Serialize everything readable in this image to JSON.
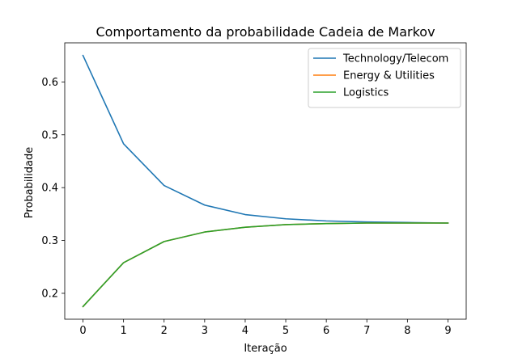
{
  "chart_data": {
    "type": "line",
    "title": "Comportamento da probabilidade Cadeia de Markov",
    "xlabel": "Iteração",
    "ylabel": "Probabilidade",
    "x": [
      0,
      1,
      2,
      3,
      4,
      5,
      6,
      7,
      8,
      9
    ],
    "xticks": [
      "0",
      "1",
      "2",
      "3",
      "4",
      "5",
      "6",
      "7",
      "8",
      "9"
    ],
    "yticks": [
      "0.2",
      "0.3",
      "0.4",
      "0.5",
      "0.6"
    ],
    "xlim": [
      -0.45,
      9.45
    ],
    "ylim": [
      0.151,
      0.674
    ],
    "grid": false,
    "legend_position": "top-right",
    "series": [
      {
        "name": "Technology/Telecom",
        "color": "#1f77b4",
        "values": [
          0.65,
          0.483,
          0.404,
          0.367,
          0.349,
          0.341,
          0.337,
          0.335,
          0.334,
          0.333
        ]
      },
      {
        "name": "Energy & Utilities",
        "color": "#ff7f0e",
        "values": [
          0.175,
          0.258,
          0.298,
          0.316,
          0.325,
          0.33,
          0.332,
          0.333,
          0.333,
          0.333
        ]
      },
      {
        "name": "Logistics",
        "color": "#2ca02c",
        "values": [
          0.175,
          0.258,
          0.298,
          0.316,
          0.325,
          0.33,
          0.332,
          0.333,
          0.333,
          0.333
        ]
      }
    ]
  }
}
